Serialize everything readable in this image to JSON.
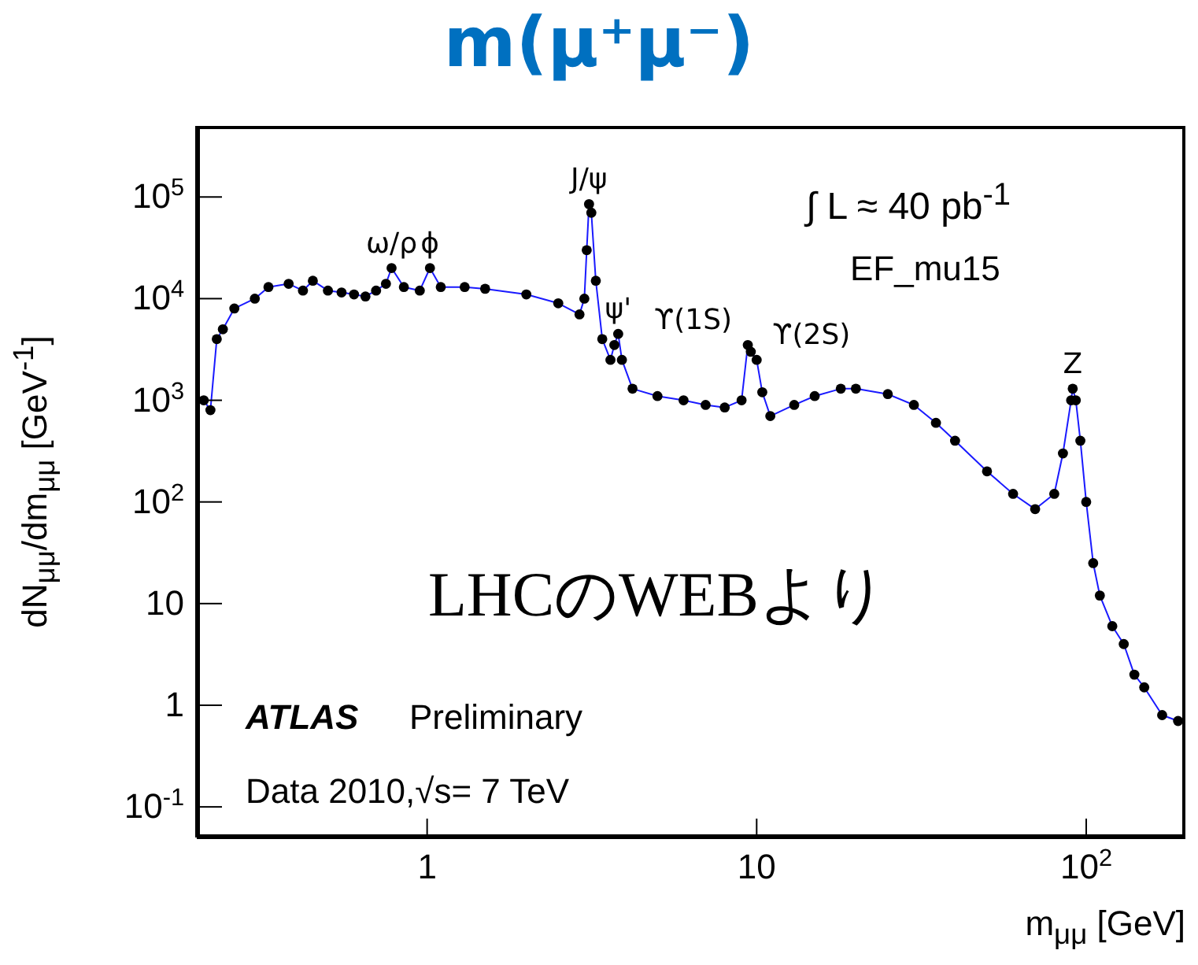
{
  "chart_data": {
    "type": "line",
    "title": "m(μ⁺μ⁻)",
    "xlabel": "m$_{μμ}$ [GeV]",
    "ylabel": "dN$_{μμ}$/dm$_{μμ}$ [GeV$^{-1}$]",
    "log": "xy",
    "grid": false,
    "legend": false,
    "marker": "circle",
    "xlim": [
      0.2,
      200
    ],
    "xticks": [
      1,
      10,
      {
        "value": 100,
        "label": "10$^{2}$"
      }
    ],
    "ylim": [
      0.05,
      500000
    ],
    "yticks": [
      {
        "value": 0.1,
        "label": "10$^{-1}$"
      },
      1,
      10,
      {
        "value": 100,
        "label": "10$^{2}$"
      },
      {
        "value": 1000,
        "label": "10$^{3}$"
      },
      {
        "value": 10000,
        "label": "10$^{4}$"
      },
      {
        "value": 100000,
        "label": "10$^{5}$"
      }
    ],
    "x": [
      0.21,
      0.22,
      0.23,
      0.24,
      0.26,
      0.3,
      0.33,
      0.38,
      0.42,
      0.45,
      0.5,
      0.55,
      0.6,
      0.65,
      0.7,
      0.75,
      0.78,
      0.85,
      0.95,
      1.02,
      1.1,
      1.3,
      1.5,
      2.0,
      2.5,
      2.9,
      3.0,
      3.05,
      3.1,
      3.15,
      3.25,
      3.4,
      3.6,
      3.7,
      3.8,
      3.9,
      4.2,
      5,
      6,
      7,
      8,
      9,
      9.4,
      9.6,
      10.0,
      10.4,
      11,
      13,
      15,
      18,
      20,
      25,
      30,
      35,
      40,
      50,
      60,
      70,
      80,
      85,
      90,
      91,
      93,
      96,
      100,
      105,
      110,
      120,
      130,
      140,
      150,
      170,
      190
    ],
    "series": [
      {
        "color": "#1a1aff",
        "marker": "none",
        "values": [
          1000,
          800,
          4000,
          5000,
          8000,
          10000,
          13000,
          14000,
          12000,
          15000,
          12000,
          11500,
          11000,
          10500,
          12000,
          14000,
          20000,
          13000,
          12000,
          20000,
          13000,
          13000,
          12500,
          11000,
          9000,
          7000,
          10000,
          30000,
          85000,
          70000,
          15000,
          4000,
          2500,
          3500,
          4500,
          2500,
          1300,
          1100,
          1000,
          900,
          850,
          1000,
          3500,
          3000,
          2500,
          1200,
          700,
          900,
          1100,
          1300,
          1300,
          1150,
          900,
          600,
          400,
          200,
          120,
          85,
          120,
          300,
          1000,
          1300,
          1000,
          400,
          100,
          25,
          12,
          6,
          4,
          2,
          1.5,
          0.8,
          0.7
        ]
      },
      {
        "type": "scatter",
        "color": "#000000",
        "values": [
          1000,
          800,
          4000,
          5000,
          8000,
          10000,
          13000,
          14000,
          12000,
          15000,
          12000,
          11500,
          11000,
          10500,
          12000,
          14000,
          20000,
          13000,
          12000,
          20000,
          13000,
          13000,
          12500,
          11000,
          9000,
          7000,
          10000,
          30000,
          85000,
          70000,
          15000,
          4000,
          2500,
          3500,
          4500,
          2500,
          1300,
          1100,
          1000,
          900,
          850,
          1000,
          3500,
          3000,
          2500,
          1200,
          700,
          900,
          1100,
          1300,
          1300,
          1150,
          900,
          600,
          400,
          200,
          120,
          85,
          120,
          300,
          1000,
          1300,
          1000,
          400,
          100,
          25,
          12,
          6,
          4,
          2,
          1.5,
          0.8,
          0.7
        ]
      }
    ],
    "annotations": [
      {
        "text": "ω/ρ",
        "x": 0.78,
        "y": 20000
      },
      {
        "text": "ϕ",
        "x": 1.02,
        "y": 20000
      },
      {
        "text": "J/ψ",
        "x": 3.1,
        "y": 85000
      },
      {
        "text": "ψ'",
        "x": 3.8,
        "y": 4500
      },
      {
        "text": "ϒ(1S)",
        "x": 9.4,
        "y": 3500
      },
      {
        "text": "ϒ(2S)",
        "x": 10.0,
        "y": 2500
      },
      {
        "text": "Z",
        "x": 91,
        "y": 1300
      },
      "∫ L ≈ 40 pb$^{-1}$",
      "EF_mu15",
      "LHCのWEBより",
      "ATLAS",
      "Preliminary",
      "Data 2010,√s= 7 TeV"
    ]
  }
}
